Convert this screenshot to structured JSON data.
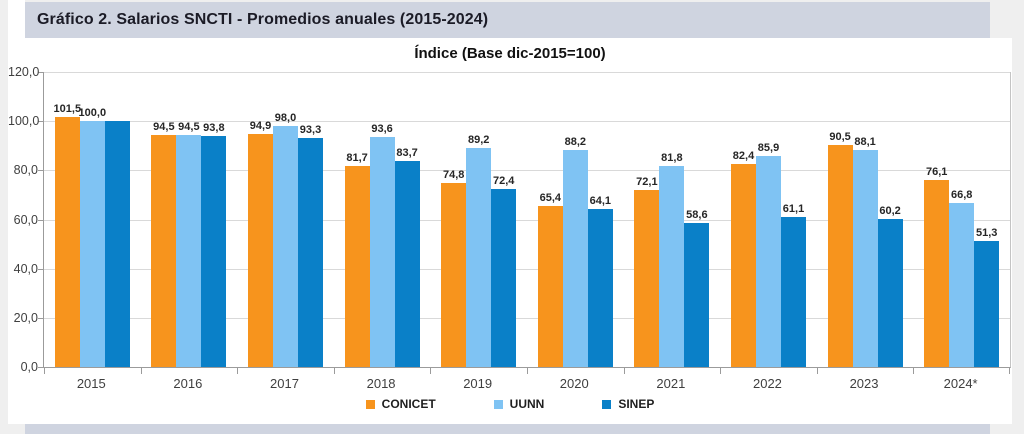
{
  "header": {
    "title": "Gráfico 2. Salarios SNCTI - Promedios anuales (2015-2024)"
  },
  "chart_data": {
    "type": "bar",
    "title": "Índice (Base dic-2015=100)",
    "xlabel": "",
    "ylabel": "",
    "categories": [
      "2015",
      "2016",
      "2017",
      "2018",
      "2019",
      "2020",
      "2021",
      "2022",
      "2023",
      "2024*"
    ],
    "series": [
      {
        "name": "CONICET",
        "color": "#F7941D",
        "values": [
          101.5,
          94.5,
          94.9,
          81.7,
          74.8,
          65.4,
          72.1,
          82.4,
          90.5,
          76.1
        ],
        "labels": [
          "101,5",
          "94,5",
          "94,9",
          "81,7",
          "74,8",
          "65,4",
          "72,1",
          "82,4",
          "90,5",
          "76,1"
        ]
      },
      {
        "name": "UUNN",
        "color": "#7FC3F3",
        "values": [
          100.0,
          94.5,
          98.0,
          93.6,
          89.2,
          88.2,
          81.8,
          85.9,
          88.1,
          66.8
        ],
        "labels": [
          "100,0",
          "94,5",
          "98,0",
          "93,6",
          "89,2",
          "88,2",
          "81,8",
          "85,9",
          "88,1",
          "66,8"
        ]
      },
      {
        "name": "SINEP",
        "color": "#0A80C8",
        "values": [
          100.0,
          93.8,
          93.3,
          83.7,
          72.4,
          64.1,
          58.6,
          61.1,
          60.2,
          51.3
        ],
        "labels": [
          null,
          "93,8",
          "93,3",
          "83,7",
          "72,4",
          "64,1",
          "58,6",
          "61,1",
          "60,2",
          "51,3"
        ]
      }
    ],
    "ylim": [
      0,
      120
    ],
    "yticks": [
      {
        "value": 0,
        "label": "0,0"
      },
      {
        "value": 20,
        "label": "20,0"
      },
      {
        "value": 40,
        "label": "40,0"
      },
      {
        "value": 60,
        "label": "60,0"
      },
      {
        "value": 80,
        "label": "80,0"
      },
      {
        "value": 100,
        "label": "100,0"
      },
      {
        "value": 120,
        "label": "120,0"
      }
    ],
    "grid": true,
    "legend_position": "bottom"
  },
  "colors": {
    "page_bg": "#EFEFEF",
    "header_band": "#CFD4E0",
    "gridline": "#D9D9D9",
    "axis": "#9B9B9B",
    "tick_text": "#3F3F3F",
    "data_label_text": "#262626"
  }
}
